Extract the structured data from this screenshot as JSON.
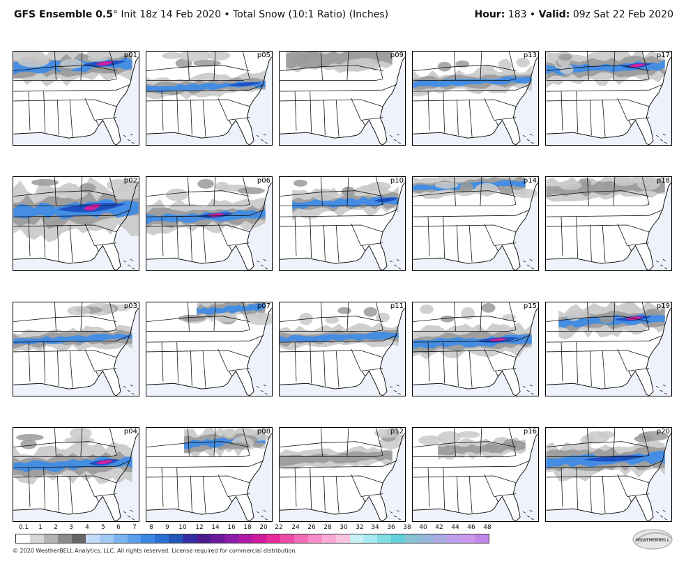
{
  "header": {
    "model": "GFS Ensemble 0.5",
    "degree": "°",
    "init": " Init 18z 14 Feb 2020 • Total Snow (10:1 Ratio) (Inches)",
    "hour_label": "Hour:",
    "hour_value": " 183 • ",
    "valid_label": "Valid:",
    "valid_value": " 09z Sat 22 Feb 2020"
  },
  "panels": [
    [
      "p01",
      "p05",
      "p09",
      "p13",
      "p17"
    ],
    [
      "p02",
      "p06",
      "p10",
      "p14",
      "p18"
    ],
    [
      "p03",
      "p07",
      "p11",
      "p15",
      "p19"
    ],
    [
      "p04",
      "p08",
      "p12",
      "p16",
      "p20"
    ]
  ],
  "scale": {
    "labels": [
      "0.1",
      "1",
      "2",
      "3",
      "4",
      "5",
      "6",
      "7",
      "8",
      "9",
      "10",
      "12",
      "14",
      "16",
      "18",
      "20",
      "22",
      "24",
      "26",
      "28",
      "30",
      "32",
      "34",
      "36",
      "38",
      "40",
      "42",
      "44",
      "46",
      "48"
    ],
    "colors": [
      "#ffffff",
      "#d9d9d9",
      "#bdbdbd",
      "#9e9e9e",
      "#7d7d7d",
      "#5f5f5f",
      "#c8def8",
      "#a7cdf6",
      "#84b8f3",
      "#5ea3ee",
      "#3f8ce6",
      "#2a6ed6",
      "#2152b8",
      "#3a2aa0",
      "#4d1a8c",
      "#6a1a9a",
      "#8c1aa8",
      "#b01aa8",
      "#d01a9e",
      "#e82a9a",
      "#f04aa8",
      "#f46ab8",
      "#f78ac8",
      "#f9a8d6",
      "#fbbfe0",
      "#c6f0f4",
      "#a4e8ee",
      "#80dde4",
      "#5ed0d8",
      "#8fb8d6",
      "#a8b0e0",
      "#c0a6ea",
      "#d29cf0",
      "#c48ae8"
    ],
    "bar_colors": [
      "#ffffff",
      "#d6d6d6",
      "#b3b3b3",
      "#8c8c8c",
      "#666666",
      "#c4dcf7",
      "#a2c9f4",
      "#7eb4f1",
      "#5a9fec",
      "#3b88e4",
      "#2a6fd4",
      "#2155b8",
      "#352ba2",
      "#4b1b8d",
      "#6a1b9b",
      "#8c1ba9",
      "#b01ba8",
      "#d01b9f",
      "#e52b98",
      "#ee4ca8",
      "#f36cb8",
      "#f78dc8",
      "#f9abd6",
      "#fbc3e2",
      "#c9f2f5",
      "#a6e9ef",
      "#82dde5",
      "#62d0d9",
      "#88c2d4",
      "#96b6da",
      "#a8aae2",
      "#bca0ea",
      "#cc98ee",
      "#c086e8"
    ]
  },
  "copyright": "© 2020 WeatherBELL Analytics, LLC. All rights reserved. License required for commercial distribution.",
  "logo_text": "WEATHERBELL",
  "colors": {
    "land": "#ffffff",
    "ocean": "#eef3fb",
    "light_snow": "#c9c9c9",
    "mid_snow": "#9a9a9a",
    "heavy_snow": "#6e6e6e",
    "blue_light": "#8fc0f5",
    "blue_mid": "#3f8ce6",
    "blue_dark": "#1f50c0",
    "magenta": "#d0209e",
    "purple": "#6a1a9a"
  }
}
